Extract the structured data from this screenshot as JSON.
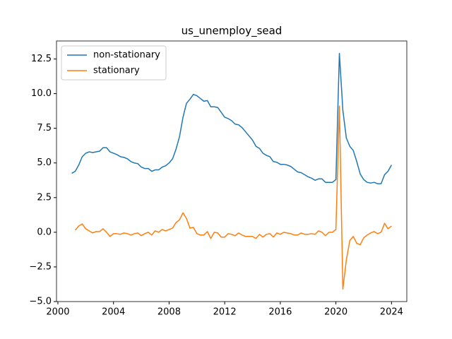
{
  "chart_data": {
    "type": "line",
    "title": "us_unemploy_sead",
    "x": [
      2001,
      2001.25,
      2001.5,
      2001.75,
      2002,
      2002.25,
      2002.5,
      2002.75,
      2003,
      2003.25,
      2003.5,
      2003.75,
      2004,
      2004.25,
      2004.5,
      2004.75,
      2005,
      2005.25,
      2005.5,
      2005.75,
      2006,
      2006.25,
      2006.5,
      2006.75,
      2007,
      2007.25,
      2007.5,
      2007.75,
      2008,
      2008.25,
      2008.5,
      2008.75,
      2009,
      2009.25,
      2009.5,
      2009.75,
      2010,
      2010.25,
      2010.5,
      2010.75,
      2011,
      2011.25,
      2011.5,
      2011.75,
      2012,
      2012.25,
      2012.5,
      2012.75,
      2013,
      2013.25,
      2013.5,
      2013.75,
      2014,
      2014.25,
      2014.5,
      2014.75,
      2015,
      2015.25,
      2015.5,
      2015.75,
      2016,
      2016.25,
      2016.5,
      2016.75,
      2017,
      2017.25,
      2017.5,
      2017.75,
      2018,
      2018.25,
      2018.5,
      2018.75,
      2019,
      2019.25,
      2019.5,
      2019.75,
      2020,
      2020.25,
      2020.5,
      2020.75,
      2021,
      2021.25,
      2021.5,
      2021.75,
      2022,
      2022.25,
      2022.5,
      2022.75,
      2023,
      2023.25,
      2023.5,
      2023.75,
      2024
    ],
    "series": [
      {
        "name": "non-stationary",
        "color": "#1f77b4",
        "values": [
          4.25,
          4.4,
          4.85,
          5.45,
          5.7,
          5.8,
          5.75,
          5.8,
          5.85,
          6.1,
          6.1,
          5.8,
          5.7,
          5.6,
          5.45,
          5.4,
          5.3,
          5.1,
          5.0,
          4.95,
          4.7,
          4.6,
          4.6,
          4.4,
          4.5,
          4.5,
          4.7,
          4.8,
          5.0,
          5.3,
          6.0,
          6.9,
          8.3,
          9.3,
          9.6,
          9.95,
          9.85,
          9.65,
          9.45,
          9.5,
          9.05,
          9.05,
          9.0,
          8.65,
          8.3,
          8.2,
          8.05,
          7.8,
          7.75,
          7.55,
          7.25,
          6.95,
          6.65,
          6.2,
          6.05,
          5.7,
          5.55,
          5.45,
          5.1,
          5.05,
          4.9,
          4.9,
          4.85,
          4.75,
          4.55,
          4.35,
          4.3,
          4.15,
          4.0,
          3.9,
          3.75,
          3.85,
          3.85,
          3.6,
          3.6,
          3.6,
          3.8,
          12.9,
          8.8,
          6.8,
          6.2,
          5.9,
          5.1,
          4.2,
          3.8,
          3.6,
          3.55,
          3.6,
          3.5,
          3.5,
          4.15,
          4.4,
          4.85
        ]
      },
      {
        "name": "stationary",
        "color": "#ff7f0e",
        "values": [
          null,
          0.15,
          0.45,
          0.6,
          0.25,
          0.1,
          -0.05,
          0.05,
          0.05,
          0.25,
          0,
          -0.3,
          -0.1,
          -0.1,
          -0.15,
          -0.05,
          -0.1,
          -0.2,
          -0.1,
          -0.05,
          -0.25,
          -0.1,
          0,
          -0.2,
          0.1,
          0,
          0.2,
          0.1,
          0.2,
          0.3,
          0.7,
          0.9,
          1.4,
          1.0,
          0.3,
          0.35,
          -0.1,
          -0.2,
          -0.2,
          0.05,
          -0.45,
          0,
          -0.05,
          -0.35,
          -0.35,
          -0.1,
          -0.15,
          -0.25,
          -0.05,
          -0.2,
          -0.3,
          -0.3,
          -0.3,
          -0.45,
          -0.15,
          -0.35,
          -0.15,
          -0.1,
          -0.35,
          -0.05,
          -0.15,
          0,
          -0.05,
          -0.1,
          -0.2,
          -0.2,
          -0.05,
          -0.15,
          -0.15,
          -0.1,
          -0.15,
          0.1,
          0,
          -0.25,
          0,
          0,
          0.2,
          9.1,
          -4.1,
          -2.0,
          -0.6,
          -0.3,
          -0.8,
          -0.9,
          -0.4,
          -0.2,
          -0.05,
          0.05,
          -0.1,
          0,
          0.65,
          0.25,
          0.45
        ]
      }
    ],
    "xlim": [
      1999.9,
      2025.1
    ],
    "ylim": [
      -5,
      13.8
    ],
    "xticks": [
      2000,
      2004,
      2008,
      2012,
      2016,
      2020,
      2024
    ],
    "yticks": [
      {
        "value": -5,
        "label": "−5.0"
      },
      {
        "value": -2.5,
        "label": "−2.5"
      },
      {
        "value": 0,
        "label": "0.0"
      },
      {
        "value": 2.5,
        "label": "2.5"
      },
      {
        "value": 5,
        "label": "5.0"
      },
      {
        "value": 7.5,
        "label": "7.5"
      },
      {
        "value": 10,
        "label": "10.0"
      },
      {
        "value": 12.5,
        "label": "12.5"
      }
    ],
    "legend": "upper left"
  }
}
